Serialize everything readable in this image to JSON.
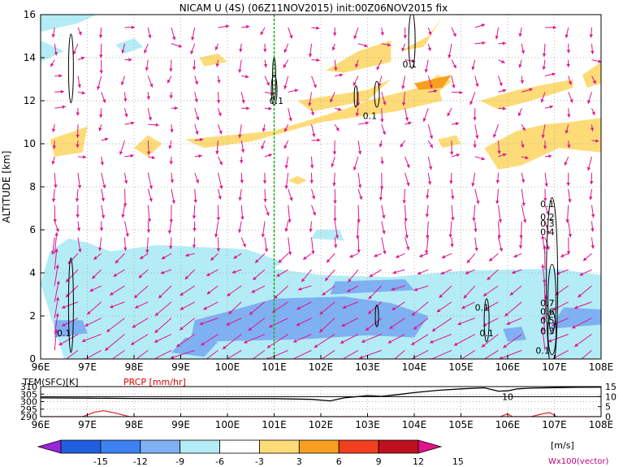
{
  "title": "NICAM U (4S) (06Z11NOV2015) init:00Z06NOV2015 fix",
  "colors": {
    "shade_neg_light": "#b4ecf6",
    "shade_neg_mid": "#7fb0f2",
    "shade_neg_dark": "#3c76e8",
    "shade_pos_light": "#fddc78",
    "shade_pos_mid": "#f7a020",
    "vector": "#e0148c",
    "marker_line": "#10b010",
    "temp_line": "#000000",
    "precip_line": "#e03030"
  },
  "chart_data": [
    {
      "type": "heatmap",
      "title": "NICAM U (4S) (06Z11NOV2015) init:00Z06NOV2015 fix",
      "ylabel": "ALTITUDE [km]",
      "xlabel": "",
      "x_ticks": [
        "96E",
        "97E",
        "98E",
        "99E",
        "100E",
        "101E",
        "102E",
        "103E",
        "104E",
        "105E",
        "106E",
        "107E",
        "108E"
      ],
      "y_ticks": [
        "0",
        "2",
        "4",
        "6",
        "8",
        "10",
        "12",
        "14",
        "16"
      ],
      "xlim": [
        96,
        108
      ],
      "ylim": [
        0,
        16
      ],
      "grid": true,
      "marker_longitude": 101,
      "contour_labels": [
        {
          "text": "0.1",
          "x": 96.5,
          "y": 1.2
        },
        {
          "text": "0.1",
          "x": 101.05,
          "y": 12.0
        },
        {
          "text": "0.1",
          "x": 103.05,
          "y": 11.3
        },
        {
          "text": "0.1",
          "x": 103.9,
          "y": 13.7
        },
        {
          "text": "0.1",
          "x": 106.85,
          "y": 7.2
        },
        {
          "text": "0.2",
          "x": 106.85,
          "y": 6.6
        },
        {
          "text": "0.3",
          "x": 106.85,
          "y": 6.3
        },
        {
          "text": "0.4",
          "x": 106.85,
          "y": 5.9
        },
        {
          "text": "0.7",
          "x": 106.85,
          "y": 2.6
        },
        {
          "text": "0.6",
          "x": 106.85,
          "y": 2.2
        },
        {
          "text": "0.5",
          "x": 106.85,
          "y": 1.8
        },
        {
          "text": "0.3",
          "x": 106.85,
          "y": 1.3
        },
        {
          "text": "0.1",
          "x": 106.75,
          "y": 0.4
        },
        {
          "text": "0.1",
          "x": 105.45,
          "y": 2.4
        },
        {
          "text": "0.1",
          "x": 105.55,
          "y": 1.2
        }
      ],
      "wind_field_summary": {
        "upper_levels_km": [
          8,
          16
        ],
        "upper_direction": "weak, mostly southward/variable",
        "lower_levels_km": [
          0,
          6
        ],
        "lower_direction": "westward (easterly winds), stronger near surface"
      }
    },
    {
      "type": "line",
      "x_ticks": [
        "96E",
        "97E",
        "98E",
        "99E",
        "100E",
        "101E",
        "102E",
        "103E",
        "104E",
        "105E",
        "106E",
        "107E",
        "108E"
      ],
      "xlim": [
        96,
        108
      ],
      "series": [
        {
          "name": "TEM(SFC)[K]",
          "axis": "left",
          "ylim": [
            290,
            310
          ],
          "y_ticks": [
            "290",
            "295",
            "300",
            "305",
            "310"
          ],
          "x": [
            96,
            97,
            98,
            99,
            100,
            101,
            101.8,
            102.2,
            102.5,
            103,
            103.3,
            103.6,
            104,
            104.5,
            105,
            105.5,
            105.8,
            106,
            106.2,
            106.5,
            107,
            107.5,
            108
          ],
          "values": [
            302.5,
            302.3,
            302.1,
            302.0,
            302.0,
            302.0,
            301.5,
            300.5,
            302.5,
            304.0,
            303.5,
            304.5,
            306.0,
            307.5,
            308.5,
            309.2,
            307.0,
            307.2,
            308.5,
            309.0,
            309.3,
            309.5,
            309.6
          ]
        },
        {
          "name": "PRCP [mm/hr]",
          "axis": "right",
          "ylim": [
            0,
            15
          ],
          "y_ticks": [
            "0",
            "5",
            "10",
            "15"
          ],
          "x": [
            96,
            96.9,
            97.15,
            97.35,
            97.65,
            97.9,
            105.6,
            105.85,
            106.0,
            106.1,
            106.5,
            106.75,
            106.9,
            107.05,
            108
          ],
          "values": [
            0,
            0,
            2.2,
            3.0,
            1.5,
            0,
            0,
            0,
            1.5,
            0,
            0,
            1.4,
            2.0,
            0,
            0
          ]
        }
      ]
    },
    {
      "type": "colorbar",
      "levels": [
        "-15",
        "-12",
        "-9",
        "-6",
        "-3",
        "3",
        "6",
        "9",
        "12",
        "15"
      ],
      "unit": "[m/s]",
      "colors": [
        "#9c24d8",
        "#2060e0",
        "#3c82f0",
        "#7fb0f2",
        "#b4ecf6",
        "#ffffff",
        "#fddc78",
        "#f7a020",
        "#f04020",
        "#c01020",
        "#e0148c"
      ]
    }
  ],
  "legend": {
    "temp_label": "TEM(SFC)[K]",
    "precip_label": "PRCP [mm/hr]",
    "vector_label": "Wx100(vector)",
    "unit_label": "[m/s]"
  }
}
